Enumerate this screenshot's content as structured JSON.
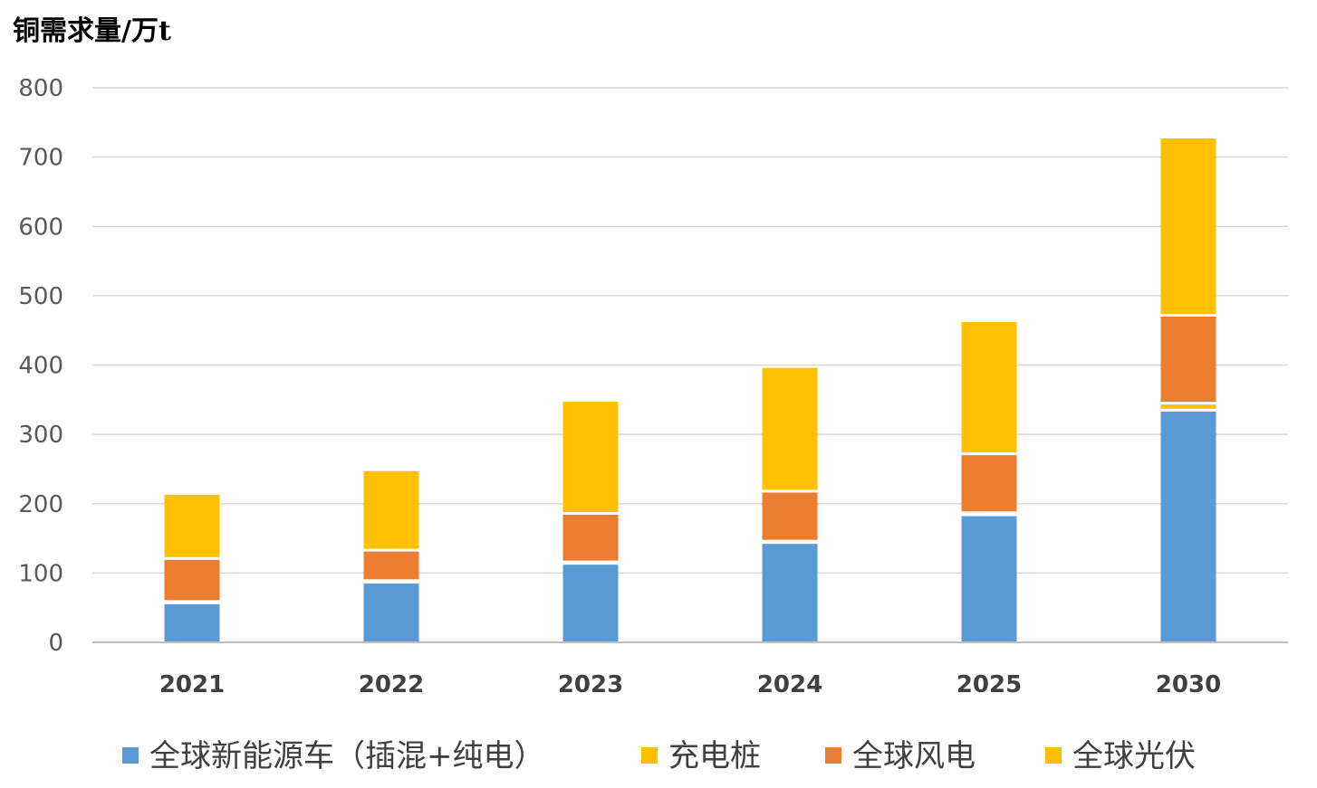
{
  "chart_data": {
    "type": "bar",
    "stacked": true,
    "ylabel": "铜需求量/万t",
    "ylim": [
      0,
      800
    ],
    "yticks": [
      0,
      100,
      200,
      300,
      400,
      500,
      600,
      700,
      800
    ],
    "grid": true,
    "legend_position": "bottom",
    "categories": [
      "2021",
      "2022",
      "2023",
      "2024",
      "2025",
      "2030"
    ],
    "series": [
      {
        "name": "全球新能源车（插混+纯电）",
        "color": "#5b9bd5",
        "values": [
          55,
          85,
          112,
          142,
          182,
          333
        ]
      },
      {
        "name": "充电桩",
        "color": "#ffc000",
        "values": [
          2,
          2,
          2,
          2,
          3,
          10
        ]
      },
      {
        "name": "全球风电",
        "color": "#ed7d31",
        "values": [
          62,
          44,
          70,
          72,
          85,
          127
        ]
      },
      {
        "name": "全球光伏",
        "color": "#ffc000",
        "values": [
          94,
          116,
          163,
          180,
          192,
          257
        ]
      }
    ]
  }
}
